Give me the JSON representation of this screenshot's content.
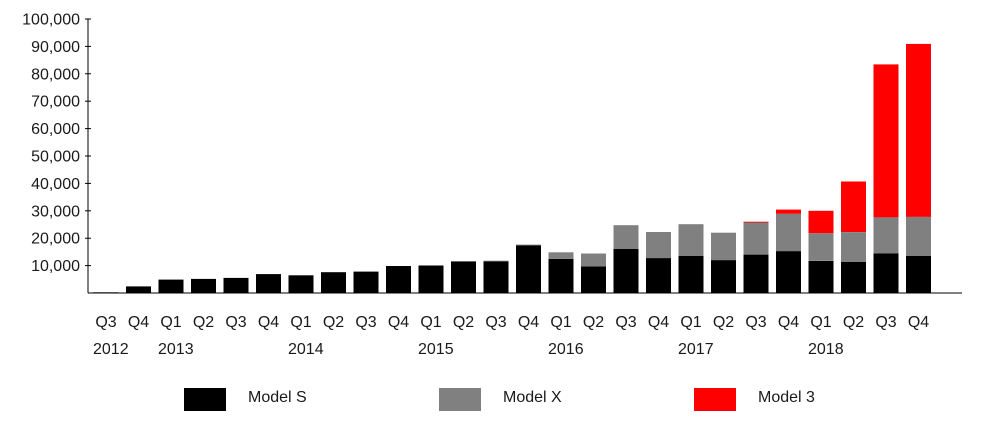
{
  "chart_data": {
    "type": "bar",
    "stacked": true,
    "quarters": [
      "Q3",
      "Q4",
      "Q1",
      "Q2",
      "Q3",
      "Q4",
      "Q1",
      "Q2",
      "Q3",
      "Q4",
      "Q1",
      "Q2",
      "Q3",
      "Q4",
      "Q1",
      "Q2",
      "Q3",
      "Q4",
      "Q1",
      "Q2",
      "Q3",
      "Q4",
      "Q1",
      "Q2",
      "Q3",
      "Q4"
    ],
    "years": [
      {
        "label": "2012",
        "start_index": 0,
        "count": 2
      },
      {
        "label": "2013",
        "start_index": 2,
        "count": 4
      },
      {
        "label": "2014",
        "start_index": 6,
        "count": 4
      },
      {
        "label": "2015",
        "start_index": 10,
        "count": 4
      },
      {
        "label": "2016",
        "start_index": 14,
        "count": 4
      },
      {
        "label": "2017",
        "start_index": 18,
        "count": 4
      },
      {
        "label": "2018",
        "start_index": 22,
        "count": 4
      }
    ],
    "series": [
      {
        "name": "Model S",
        "color": "#000000",
        "values": [
          250,
          2400,
          4900,
          5150,
          5500,
          6900,
          6450,
          7600,
          7800,
          9850,
          10050,
          11550,
          11600,
          17450,
          12450,
          9750,
          16050,
          12750,
          13500,
          12000,
          14000,
          15300,
          11730,
          11310,
          14400,
          13500
        ]
      },
      {
        "name": "Model X",
        "color": "#808080",
        "values": [
          0,
          0,
          0,
          0,
          0,
          0,
          0,
          0,
          0,
          0,
          0,
          0,
          200,
          200,
          2400,
          4650,
          8700,
          9500,
          11600,
          10000,
          11800,
          13600,
          10090,
          10930,
          13190,
          14250
        ]
      },
      {
        "name": "Model 3",
        "color": "#ff0000",
        "values": [
          0,
          0,
          0,
          0,
          0,
          0,
          0,
          0,
          0,
          0,
          0,
          0,
          0,
          0,
          0,
          0,
          0,
          0,
          0,
          0,
          220,
          1550,
          8180,
          18440,
          55840,
          63150
        ]
      }
    ],
    "y_ticks": [
      "10,000",
      "20,000",
      "30,000",
      "40,000",
      "50,000",
      "60,000",
      "70,000",
      "80,000",
      "90,000",
      "100,000"
    ],
    "y_tick_values": [
      10000,
      20000,
      30000,
      40000,
      50000,
      60000,
      70000,
      80000,
      90000,
      100000
    ],
    "ylim": [
      0,
      100000
    ],
    "title": "",
    "xlabel": "",
    "ylabel": "",
    "grid": false,
    "legend_position": "bottom"
  },
  "legend": [
    {
      "label": "Model S",
      "color": "#000000"
    },
    {
      "label": "Model X",
      "color": "#808080"
    },
    {
      "label": "Model 3",
      "color": "#ff0000"
    }
  ]
}
